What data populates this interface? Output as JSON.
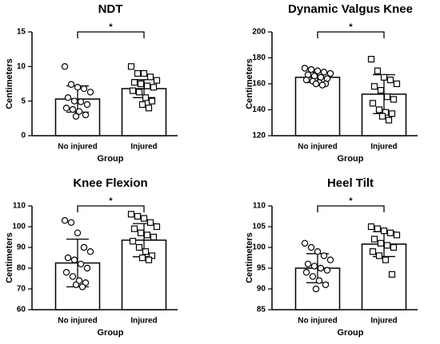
{
  "chart_data": [
    {
      "type": "bar",
      "title": "NDT",
      "xlabel": "Group",
      "ylabel": "Centimeters",
      "annotation": "*",
      "categories": [
        "No injured",
        "Injured"
      ],
      "values": [
        5.3,
        6.8
      ],
      "errors": [
        1.9,
        1.3
      ],
      "points": [
        [
          10,
          7.4,
          7,
          6.8,
          6.3,
          5.5,
          5,
          4.9,
          4.5,
          4,
          3.8,
          3.5,
          3,
          2.8
        ],
        [
          10,
          9,
          9,
          8.5,
          8,
          7.7,
          7.5,
          7.2,
          7,
          6.5,
          6.3,
          5.5,
          5,
          4.5,
          4
        ]
      ],
      "markers": [
        "circle",
        "square"
      ],
      "ylim": [
        0,
        15
      ],
      "yticks": [
        0,
        5,
        10,
        15
      ]
    },
    {
      "type": "bar",
      "title": "Dynamic Valgus Knee",
      "xlabel": "Group",
      "ylabel": "Centimeters",
      "annotation": "*",
      "categories": [
        "No injured",
        "Injured"
      ],
      "values": [
        165,
        152
      ],
      "errors": [
        4,
        15
      ],
      "points": [
        [
          172,
          171,
          170,
          169,
          168,
          167,
          166,
          165,
          164,
          163,
          162,
          161,
          160,
          160,
          159
        ],
        [
          179,
          170,
          165,
          163,
          160,
          158,
          155,
          150,
          148,
          145,
          140,
          138,
          137,
          135,
          132
        ]
      ],
      "markers": [
        "circle",
        "square"
      ],
      "ylim": [
        120,
        200
      ],
      "yticks": [
        120,
        140,
        160,
        180,
        200
      ]
    },
    {
      "type": "bar",
      "title": "Knee Flexion",
      "xlabel": "Group",
      "ylabel": "Centimeters",
      "annotation": "*",
      "categories": [
        "No injured",
        "Injured"
      ],
      "values": [
        82.5,
        93.5
      ],
      "errors": [
        11.5,
        8
      ],
      "points": [
        [
          103,
          102,
          97,
          90,
          88,
          85,
          84,
          82,
          80,
          78,
          76,
          74,
          73,
          72,
          71
        ],
        [
          106,
          105,
          104,
          102,
          100,
          99,
          97,
          96,
          95,
          93,
          90,
          88,
          86,
          85,
          84
        ]
      ],
      "markers": [
        "circle",
        "square"
      ],
      "ylim": [
        60,
        110
      ],
      "yticks": [
        60,
        70,
        80,
        90,
        100,
        110
      ]
    },
    {
      "type": "bar",
      "title": "Heel Tilt",
      "xlabel": "Group",
      "ylabel": "Centimeters",
      "annotation": "*",
      "categories": [
        "No injured",
        "Injured"
      ],
      "values": [
        95,
        100.8
      ],
      "errors": [
        3.5,
        3
      ],
      "points": [
        [
          101,
          100,
          99,
          98,
          97,
          96,
          95.5,
          95,
          94.5,
          94,
          93,
          92,
          91,
          90
        ],
        [
          105,
          104.5,
          104,
          103.5,
          103,
          102,
          101,
          100.5,
          100,
          99,
          98,
          97,
          93.5
        ]
      ],
      "markers": [
        "circle",
        "square"
      ],
      "ylim": [
        85,
        110
      ],
      "yticks": [
        85,
        90,
        95,
        100,
        105,
        110
      ]
    }
  ]
}
